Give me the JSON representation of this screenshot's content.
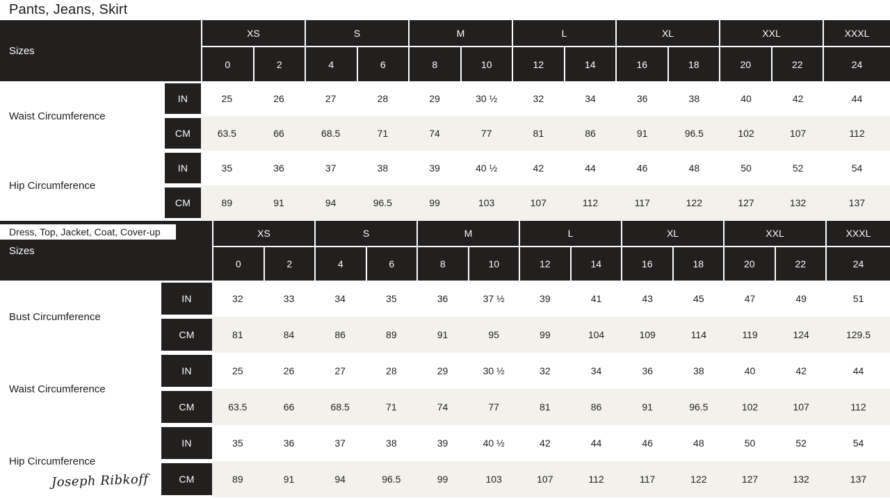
{
  "colors": {
    "table_black": "#221f1f",
    "row_alt": "#f2f1ec",
    "text_dark": "#1c1c1c",
    "text_light": "#fdfdfd"
  },
  "brand": {
    "logo_text": "Joseph Ribkoff"
  },
  "tables": [
    {
      "title": "Pants, Jeans, Skirt",
      "sizes_label": "Sizes",
      "letter_sizes": [
        {
          "label": "XS",
          "span": 2
        },
        {
          "label": "S",
          "span": 2
        },
        {
          "label": "M",
          "span": 2
        },
        {
          "label": "L",
          "span": 2
        },
        {
          "label": "XL",
          "span": 2
        },
        {
          "label": "XXL",
          "span": 2
        },
        {
          "label": "XXXL",
          "span": 1
        }
      ],
      "numeric_sizes": [
        "0",
        "2",
        "4",
        "6",
        "8",
        "10",
        "12",
        "14",
        "16",
        "18",
        "20",
        "22",
        "24"
      ],
      "measurements": [
        {
          "label": "Waist Circumference",
          "rows": [
            {
              "unit": "IN",
              "values": [
                "25",
                "26",
                "27",
                "28",
                "29",
                "30 ½",
                "32",
                "34",
                "36",
                "38",
                "40",
                "42",
                "44"
              ]
            },
            {
              "unit": "CM",
              "values": [
                "63.5",
                "66",
                "68.5",
                "71",
                "74",
                "77",
                "81",
                "86",
                "91",
                "96.5",
                "102",
                "107",
                "112"
              ]
            }
          ]
        },
        {
          "label": "Hip Circumference",
          "rows": [
            {
              "unit": "IN",
              "values": [
                "35",
                "36",
                "37",
                "38",
                "39",
                "40 ½",
                "42",
                "44",
                "46",
                "48",
                "50",
                "52",
                "54"
              ]
            },
            {
              "unit": "CM",
              "values": [
                "89",
                "91",
                "94",
                "96.5",
                "99",
                "103",
                "107",
                "112",
                "117",
                "122",
                "127",
                "132",
                "137"
              ]
            }
          ]
        }
      ]
    },
    {
      "title": "Dress, Top, Jacket, Coat, Cover-up",
      "sizes_label": "Sizes",
      "letter_sizes": [
        {
          "label": "XS",
          "span": 2
        },
        {
          "label": "S",
          "span": 2
        },
        {
          "label": "M",
          "span": 2
        },
        {
          "label": "L",
          "span": 2
        },
        {
          "label": "XL",
          "span": 2
        },
        {
          "label": "XXL",
          "span": 2
        },
        {
          "label": "XXXL",
          "span": 1
        }
      ],
      "numeric_sizes": [
        "0",
        "2",
        "4",
        "6",
        "8",
        "10",
        "12",
        "14",
        "16",
        "18",
        "20",
        "22",
        "24"
      ],
      "measurements": [
        {
          "label": "Bust Circumference",
          "rows": [
            {
              "unit": "IN",
              "values": [
                "32",
                "33",
                "34",
                "35",
                "36",
                "37 ½",
                "39",
                "41",
                "43",
                "45",
                "47",
                "49",
                "51"
              ]
            },
            {
              "unit": "CM",
              "values": [
                "81",
                "84",
                "86",
                "89",
                "91",
                "95",
                "99",
                "104",
                "109",
                "114",
                "119",
                "124",
                "129.5"
              ]
            }
          ]
        },
        {
          "label": "Waist Circumference",
          "rows": [
            {
              "unit": "IN",
              "values": [
                "25",
                "26",
                "27",
                "28",
                "29",
                "30 ½",
                "32",
                "34",
                "36",
                "38",
                "40",
                "42",
                "44"
              ]
            },
            {
              "unit": "CM",
              "values": [
                "63.5",
                "66",
                "68.5",
                "71",
                "74",
                "77",
                "81",
                "86",
                "91",
                "96.5",
                "102",
                "107",
                "112"
              ]
            }
          ]
        },
        {
          "label": "Hip Circumference",
          "rows": [
            {
              "unit": "IN",
              "values": [
                "35",
                "36",
                "37",
                "38",
                "39",
                "40 ½",
                "42",
                "44",
                "46",
                "48",
                "50",
                "52",
                "54"
              ]
            },
            {
              "unit": "CM",
              "values": [
                "89",
                "91",
                "94",
                "96.5",
                "99",
                "103",
                "107",
                "112",
                "117",
                "122",
                "127",
                "132",
                "137"
              ]
            }
          ]
        }
      ]
    }
  ]
}
